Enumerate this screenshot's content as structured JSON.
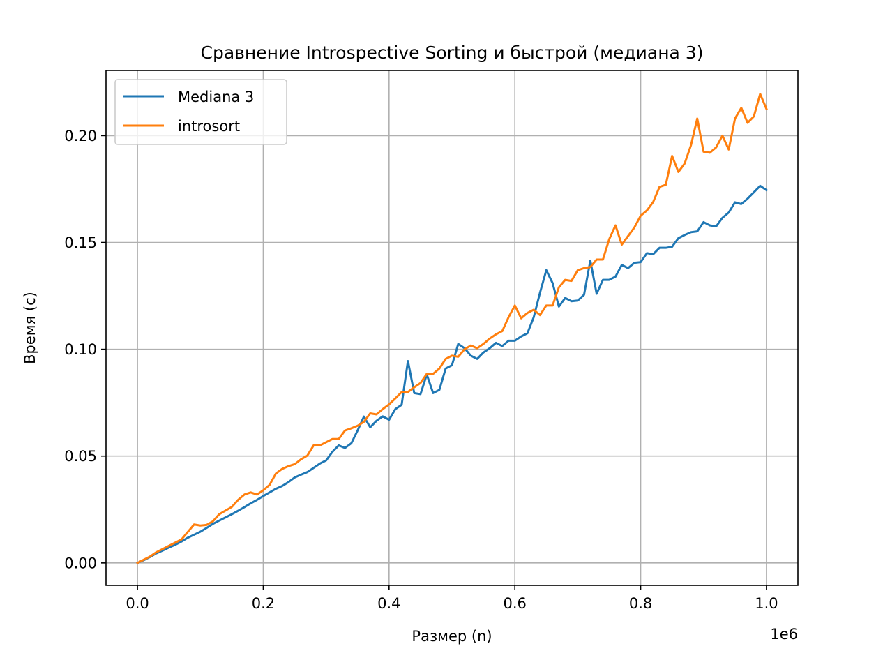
{
  "chart_data": {
    "type": "line",
    "title": "Сравнение Introspective Sorting и быстрой (медиана 3)",
    "xlabel": "Размер (n)",
    "ylabel": "Время (с)",
    "x_offset_label": "1e6",
    "xlim": [
      -50000,
      1050000
    ],
    "ylim": [
      -0.0105,
      0.2305
    ],
    "x_ticks": [
      0,
      200000,
      400000,
      600000,
      800000,
      1000000
    ],
    "x_tick_labels": [
      "0.0",
      "0.2",
      "0.4",
      "0.6",
      "0.8",
      "1.0"
    ],
    "y_ticks": [
      0,
      0.05,
      0.1,
      0.15,
      0.2
    ],
    "y_tick_labels": [
      "0.00",
      "0.05",
      "0.10",
      "0.15",
      "0.20"
    ],
    "grid": true,
    "legend_position": "top-left",
    "x": [
      0,
      10000,
      20000,
      30000,
      40000,
      50000,
      60000,
      70000,
      80000,
      90000,
      100000,
      110000,
      120000,
      130000,
      140000,
      150000,
      160000,
      170000,
      180000,
      190000,
      200000,
      210000,
      220000,
      230000,
      240000,
      250000,
      260000,
      270000,
      280000,
      290000,
      300000,
      310000,
      320000,
      330000,
      340000,
      350000,
      360000,
      370000,
      380000,
      390000,
      400000,
      410000,
      420000,
      430000,
      440000,
      450000,
      460000,
      470000,
      480000,
      490000,
      500000,
      510000,
      520000,
      530000,
      540000,
      550000,
      560000,
      570000,
      580000,
      590000,
      600000,
      610000,
      620000,
      630000,
      640000,
      650000,
      660000,
      670000,
      680000,
      690000,
      700000,
      710000,
      720000,
      730000,
      740000,
      750000,
      760000,
      770000,
      780000,
      790000,
      800000,
      810000,
      820000,
      830000,
      840000,
      850000,
      860000,
      870000,
      880000,
      890000,
      900000,
      910000,
      920000,
      930000,
      940000,
      950000,
      960000,
      970000,
      980000,
      990000,
      1000000
    ],
    "series": [
      {
        "name": "Mediana 3",
        "color": "#1f77b4",
        "values": [
          0.0,
          0.0013,
          0.0028,
          0.0045,
          0.0058,
          0.0072,
          0.0085,
          0.01,
          0.0118,
          0.0132,
          0.0146,
          0.0164,
          0.0183,
          0.0198,
          0.0213,
          0.0228,
          0.0244,
          0.0261,
          0.0279,
          0.0295,
          0.0313,
          0.033,
          0.0347,
          0.036,
          0.0378,
          0.04,
          0.0413,
          0.0425,
          0.0445,
          0.0465,
          0.048,
          0.052,
          0.055,
          0.0538,
          0.056,
          0.062,
          0.0685,
          0.0635,
          0.0665,
          0.0686,
          0.067,
          0.072,
          0.074,
          0.0945,
          0.0795,
          0.079,
          0.0882,
          0.0795,
          0.081,
          0.091,
          0.0925,
          0.1025,
          0.1005,
          0.097,
          0.0955,
          0.0985,
          0.1005,
          0.103,
          0.1015,
          0.104,
          0.104,
          0.106,
          0.1075,
          0.115,
          0.1265,
          0.137,
          0.131,
          0.12,
          0.124,
          0.1225,
          0.1228,
          0.1255,
          0.1415,
          0.126,
          0.1325,
          0.1325,
          0.134,
          0.1395,
          0.138,
          0.1405,
          0.1408,
          0.145,
          0.1445,
          0.1475,
          0.1475,
          0.148,
          0.152,
          0.1535,
          0.1548,
          0.1552,
          0.1595,
          0.158,
          0.1575,
          0.1615,
          0.164,
          0.1688,
          0.168,
          0.1705,
          0.1735,
          0.1765,
          0.1745
        ]
      },
      {
        "name": "introsort",
        "color": "#ff7f0e",
        "values": [
          0.0,
          0.0015,
          0.003,
          0.005,
          0.0065,
          0.008,
          0.0095,
          0.011,
          0.0145,
          0.018,
          0.0175,
          0.0178,
          0.0195,
          0.0228,
          0.0245,
          0.0262,
          0.0295,
          0.032,
          0.033,
          0.032,
          0.034,
          0.0365,
          0.0418,
          0.044,
          0.0453,
          0.0462,
          0.0485,
          0.0502,
          0.055,
          0.055,
          0.0565,
          0.058,
          0.058,
          0.062,
          0.063,
          0.0642,
          0.066,
          0.07,
          0.0695,
          0.072,
          0.0742,
          0.077,
          0.08,
          0.08,
          0.0822,
          0.0842,
          0.0885,
          0.0885,
          0.091,
          0.0955,
          0.097,
          0.0965,
          0.1,
          0.1018,
          0.1005,
          0.1025,
          0.105,
          0.107,
          0.1085,
          0.115,
          0.1205,
          0.1145,
          0.117,
          0.1185,
          0.116,
          0.1205,
          0.1205,
          0.129,
          0.1325,
          0.132,
          0.137,
          0.138,
          0.1385,
          0.142,
          0.142,
          0.1515,
          0.158,
          0.149,
          0.153,
          0.157,
          0.1625,
          0.165,
          0.169,
          0.176,
          0.177,
          0.1905,
          0.183,
          0.187,
          0.1955,
          0.208,
          0.1925,
          0.192,
          0.1945,
          0.2,
          0.1935,
          0.208,
          0.213,
          0.206,
          0.209,
          0.2195,
          0.2125
        ]
      }
    ]
  }
}
